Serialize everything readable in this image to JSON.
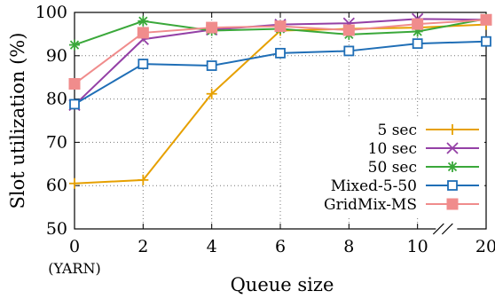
{
  "chart_data": {
    "type": "line",
    "title": "",
    "xlabel": "Queue size",
    "ylabel": "Slot utilization (%)",
    "categories": [
      "0",
      "2",
      "4",
      "6",
      "8",
      "10",
      "20"
    ],
    "x_tick_sublabels": [
      "(YARN)",
      "",
      "",
      "",
      "",
      "",
      ""
    ],
    "ylim": [
      50,
      100
    ],
    "yticks": [
      "50",
      "60",
      "70",
      "80",
      "90",
      "100"
    ],
    "grid": true,
    "x_axis_break": "between 10 and 20",
    "legend_position": "right",
    "series": [
      {
        "name": "5 sec",
        "color": "#e6a000",
        "marker": "plus",
        "values": [
          60.5,
          61.3,
          81.2,
          95.8,
          96.2,
          96.5,
          97.2
        ]
      },
      {
        "name": "10 sec",
        "color": "#9440a6",
        "marker": "x",
        "values": [
          78.6,
          93.8,
          96.0,
          97.2,
          97.5,
          98.5,
          98.3
        ]
      },
      {
        "name": "50 sec",
        "color": "#3aa83a",
        "marker": "star",
        "values": [
          92.5,
          98.0,
          95.8,
          96.2,
          94.9,
          95.6,
          98.5
        ]
      },
      {
        "name": "Mixed-5-50",
        "color": "#1f6eb6",
        "marker": "square",
        "values": [
          78.8,
          88.1,
          87.7,
          90.6,
          91.1,
          92.8,
          93.3
        ]
      },
      {
        "name": "GridMix-MS",
        "color": "#f08c8c",
        "marker": "filled-square",
        "values": [
          83.5,
          95.3,
          96.5,
          96.8,
          95.9,
          97.3,
          98.3
        ]
      }
    ]
  }
}
